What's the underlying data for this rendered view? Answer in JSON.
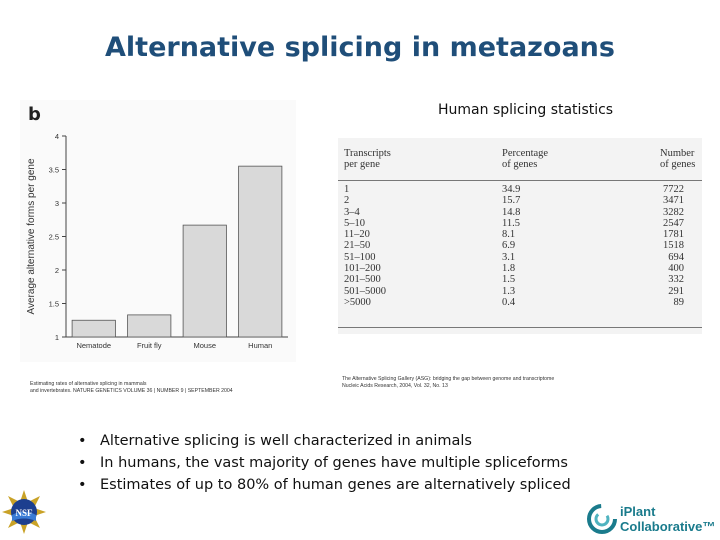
{
  "title": "Alternative splicing in metazoans",
  "chart_data": {
    "type": "bar",
    "panel_label": "b",
    "title": "",
    "xlabel": "",
    "ylabel": "Average alternative forms per gene",
    "categories": [
      "Nematode",
      "Fruit fly",
      "Mouse",
      "Human"
    ],
    "values": [
      1.25,
      1.33,
      2.67,
      3.55
    ],
    "ylim": [
      1,
      4
    ],
    "ytick_values": [
      1,
      1.5,
      2,
      2.5,
      3,
      3.5,
      4
    ],
    "ytick_labels": [
      "1",
      "1.5",
      "2",
      "2.5",
      "3",
      "3.5",
      "4"
    ],
    "grid": false,
    "bar_color": "#d9d9d9",
    "legend": "none"
  },
  "chart_citation": [
    "Estimating rates of alternative splicing in mammals",
    "and invertebrates. NATURE GENETICS VOLUME 36 | NUMBER 9 | SEPTEMBER 2004"
  ],
  "table_title": "Human splicing statistics",
  "table": {
    "headers": [
      [
        "Transcripts",
        "per gene"
      ],
      [
        "Percentage",
        "of genes"
      ],
      [
        "Number",
        "of genes"
      ]
    ],
    "rows": [
      [
        "1",
        "34.9",
        "7722"
      ],
      [
        "2",
        "15.7",
        "3471"
      ],
      [
        "3–4",
        "14.8",
        "3282"
      ],
      [
        "5–10",
        "11.5",
        "2547"
      ],
      [
        "11–20",
        "8.1",
        "1781"
      ],
      [
        "21–50",
        "6.9",
        "1518"
      ],
      [
        "51–100",
        "3.1",
        "694"
      ],
      [
        "101–200",
        "1.8",
        "400"
      ],
      [
        "201–500",
        "1.5",
        "332"
      ],
      [
        "501–5000",
        "1.3",
        "291"
      ],
      [
        ">5000",
        "0.4",
        "89"
      ]
    ]
  },
  "table_citation": [
    "The Alternative Splicing Gallery (ASG): bridging the gap between genome and transcriptome",
    "Nucleic Acids Research, 2004, Vol. 32, No. 13"
  ],
  "bullets": [
    "Alternative splicing is well characterized in animals",
    "In humans, the vast majority of genes have multiple spliceforms",
    "Estimates of up to 80% of human genes are alternatively spliced"
  ],
  "logos": {
    "left": {
      "name": "nsf-logo",
      "text": "NSF"
    },
    "right": {
      "name": "iplant-collaborative-logo",
      "line1": "iPlant",
      "line2": "Collaborative™"
    }
  },
  "colors": {
    "title": "#1f4e79",
    "iplant": "#1a7b8c"
  }
}
